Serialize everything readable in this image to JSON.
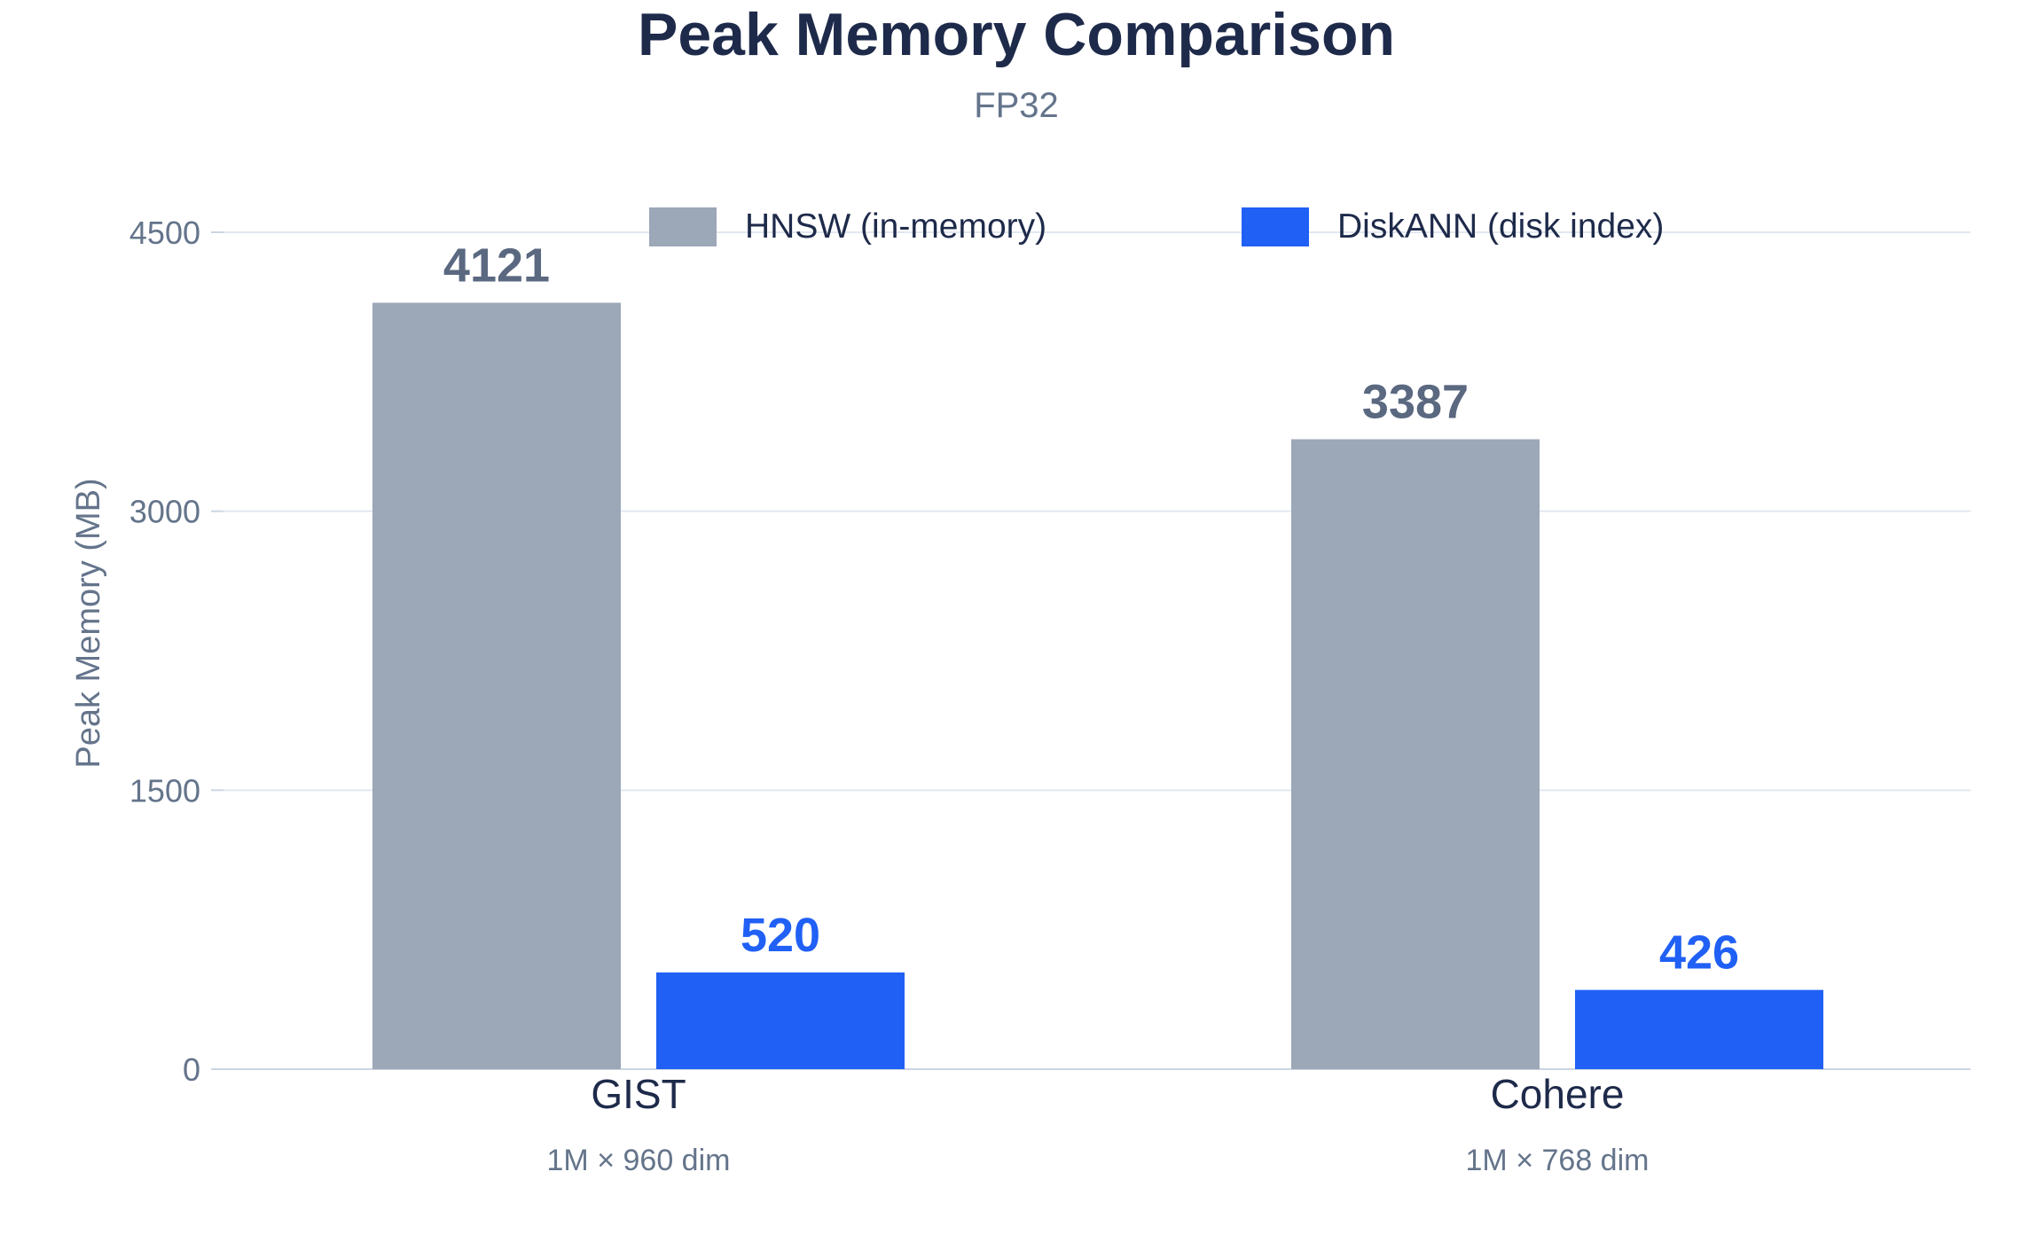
{
  "chart_data": {
    "type": "bar",
    "title": "Peak Memory Comparison",
    "subtitle": "FP32",
    "ylabel": "Peak Memory (MB)",
    "xlabel": "",
    "ylim": [
      0,
      4500
    ],
    "yticks": [
      0,
      1500,
      3000,
      4500
    ],
    "grid": true,
    "legend_position": "top-center",
    "categories": [
      "GIST",
      "Cohere"
    ],
    "category_subtitles": [
      "1M × 960 dim",
      "1M × 768 dim"
    ],
    "series": [
      {
        "name": "HNSW (in-memory)",
        "values": [
          4121,
          3387
        ],
        "color": "#9ca7b8",
        "label_color": "#5a6880"
      },
      {
        "name": "DiskANN (disk index)",
        "values": [
          520,
          426
        ],
        "color": "#2060f5",
        "label_color": "#2060f5"
      }
    ],
    "grid_color": "#e2e8f0",
    "axis_color": "#cbd5e1"
  }
}
